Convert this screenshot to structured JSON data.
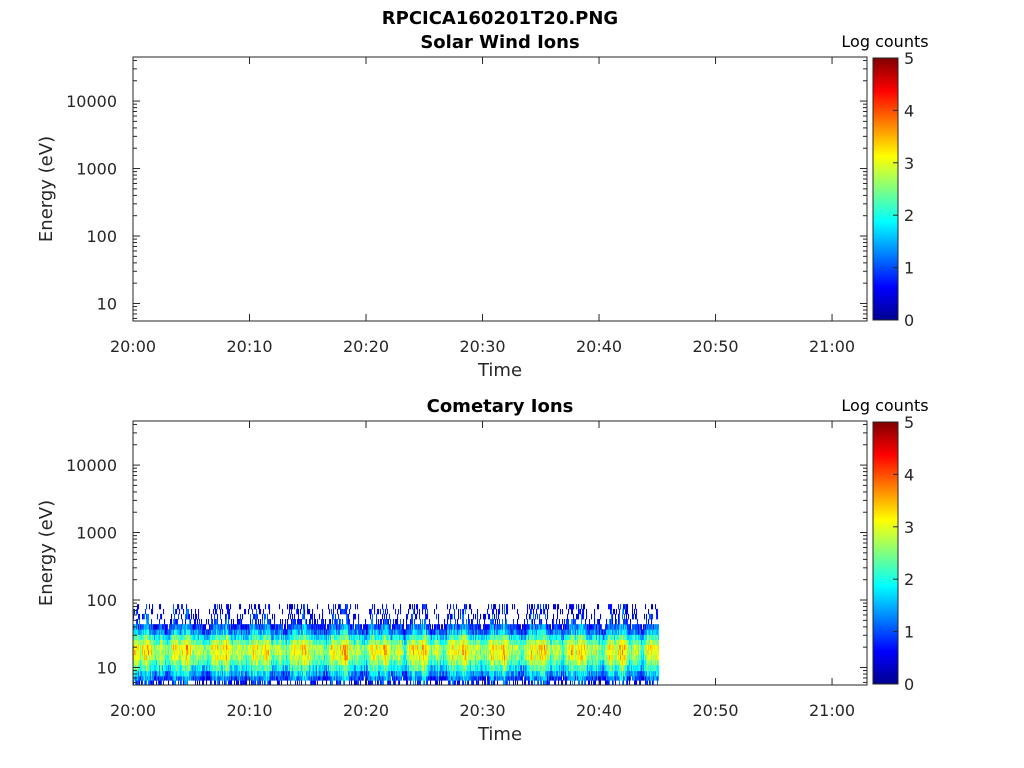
{
  "figure_title": "RPCICA160201T20.PNG",
  "colors": {
    "axis": "#262626",
    "background": "#ffffff"
  },
  "chart_data": [
    {
      "type": "heatmap",
      "title": "Solar Wind Ions",
      "xlabel": "Time",
      "ylabel": "Energy (eV)",
      "x_ticks": [
        "20:00",
        "20:10",
        "20:20",
        "20:30",
        "20:40",
        "20:50",
        "21:00"
      ],
      "x_range": [
        "20:00",
        "21:03"
      ],
      "y_scale": "log",
      "y_ticks": [
        10,
        100,
        1000,
        10000
      ],
      "y_tick_labels": [
        "10",
        "100",
        "1000",
        "10000"
      ],
      "y_range": [
        5.5,
        45000
      ],
      "colorbar": {
        "label": "Log counts",
        "range": [
          0,
          5
        ],
        "ticks": [
          "0",
          "1",
          "2",
          "3",
          "4",
          "5"
        ],
        "colormap": "jet"
      },
      "data": []
    },
    {
      "type": "heatmap",
      "title": "Cometary Ions",
      "xlabel": "Time",
      "ylabel": "Energy (eV)",
      "x_ticks": [
        "20:00",
        "20:10",
        "20:20",
        "20:30",
        "20:40",
        "20:50",
        "21:00"
      ],
      "x_range": [
        "20:00",
        "21:03"
      ],
      "y_scale": "log",
      "y_ticks": [
        10,
        100,
        1000,
        10000
      ],
      "y_tick_labels": [
        "10",
        "100",
        "1000",
        "10000"
      ],
      "y_range": [
        5.5,
        45000
      ],
      "colorbar": {
        "label": "Log counts",
        "range": [
          0,
          5
        ],
        "ticks": [
          "0",
          "1",
          "2",
          "3",
          "4",
          "5"
        ],
        "colormap": "jet"
      },
      "data_time_range": [
        "20:00",
        "20:45"
      ],
      "energy_profile": {
        "energy_eV": [
          6,
          7,
          8,
          10,
          12,
          14,
          17,
          20,
          24,
          28,
          34,
          40,
          48,
          57,
          68,
          80
        ],
        "log_counts": [
          0.7,
          1.1,
          1.5,
          2.0,
          2.4,
          2.7,
          2.9,
          2.9,
          2.5,
          2.0,
          1.4,
          1.0,
          0.7,
          0.5,
          0.4,
          0.3
        ]
      }
    }
  ]
}
